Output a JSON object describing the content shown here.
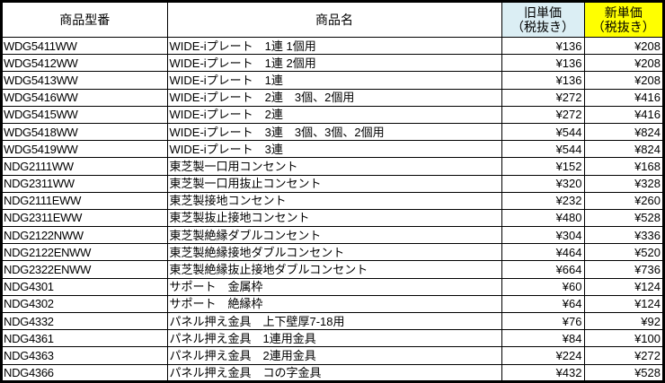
{
  "header": {
    "code": "商品型番",
    "name": "商品名",
    "old_price_line1": "旧単価",
    "old_price_line2": "（税抜き）",
    "new_price_line1": "新単価",
    "new_price_line2": "（税抜き）"
  },
  "colors": {
    "old_header_bg": "#dbeef4",
    "new_header_bg": "#ffff00"
  },
  "rows": [
    {
      "code": "WDG5411WW",
      "name": "WIDE-iプレート　1連 1個用",
      "old": "¥136",
      "new": "¥208"
    },
    {
      "code": "WDG5412WW",
      "name": "WIDE-iプレート　1連 2個用",
      "old": "¥136",
      "new": "¥208"
    },
    {
      "code": "WDG5413WW",
      "name": "WIDE-iプレート　1連",
      "old": "¥136",
      "new": "¥208"
    },
    {
      "code": "WDG5416WW",
      "name": "WIDE-iプレート　2連　3個、2個用",
      "old": "¥272",
      "new": "¥416"
    },
    {
      "code": "WDG5415WW",
      "name": "WIDE-iプレート　2連",
      "old": "¥272",
      "new": "¥416"
    },
    {
      "code": "WDG5418WW",
      "name": "WIDE-iプレート　3連　3個、3個、2個用",
      "old": "¥544",
      "new": "¥824"
    },
    {
      "code": "WDG5419WW",
      "name": "WIDE-iプレート　3連",
      "old": "¥544",
      "new": "¥824"
    },
    {
      "code": "NDG2111WW",
      "name": "東芝製一口用コンセント",
      "old": "¥152",
      "new": "¥168"
    },
    {
      "code": "NDG2311WW",
      "name": "東芝製一口用抜止コンセント",
      "old": "¥320",
      "new": "¥328"
    },
    {
      "code": "NDG2111EWW",
      "name": "東芝製接地コンセント",
      "old": "¥232",
      "new": "¥260"
    },
    {
      "code": "NDG2311EWW",
      "name": "東芝製抜止接地コンセント",
      "old": "¥480",
      "new": "¥528"
    },
    {
      "code": "NDG2122NWW",
      "name": "東芝製絶縁ダブルコンセント",
      "old": "¥304",
      "new": "¥336"
    },
    {
      "code": "NDG2122ENWW",
      "name": "東芝製絶縁接地ダブルコンセント",
      "old": "¥464",
      "new": "¥520"
    },
    {
      "code": "NDG2322ENWW",
      "name": "東芝製絶縁抜止接地ダブルコンセント",
      "old": "¥664",
      "new": "¥736"
    },
    {
      "code": "NDG4301",
      "name": "サポート　金属枠",
      "old": "¥60",
      "new": "¥124"
    },
    {
      "code": "NDG4302",
      "name": "サポート　絶縁枠",
      "old": "¥64",
      "new": "¥124"
    },
    {
      "code": "NDG4332",
      "name": "パネル押え金具　上下壁厚7-18用",
      "old": "¥76",
      "new": "¥92"
    },
    {
      "code": "NDG4361",
      "name": "パネル押え金具　1連用金具",
      "old": "¥84",
      "new": "¥100"
    },
    {
      "code": "NDG4363",
      "name": "パネル押え金具　2連用金具",
      "old": "¥224",
      "new": "¥272"
    },
    {
      "code": "NDG4366",
      "name": "パネル押え金具　コの字金具",
      "old": "¥432",
      "new": "¥528"
    }
  ]
}
